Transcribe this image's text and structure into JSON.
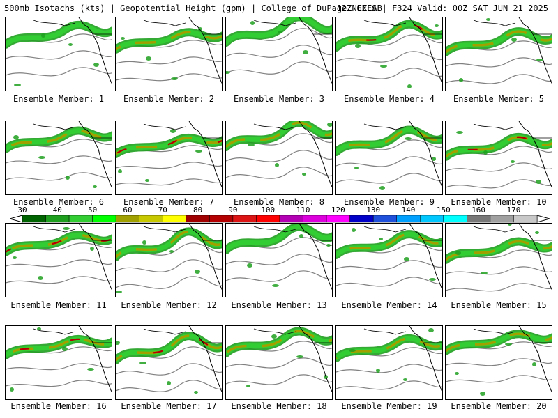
{
  "header": {
    "left": "500mb Isotachs (kts) | Geopotential Height (gpm) | College of DuPage NEXLAB",
    "right": "12Z GEFS | F324 Valid: 00Z SAT JUN 21 2025"
  },
  "legend": {
    "ticks": [
      "30",
      "40",
      "50",
      "60",
      "70",
      "80",
      "90",
      "100",
      "110",
      "120",
      "130",
      "140",
      "150",
      "160",
      "170"
    ],
    "colors": [
      "#006400",
      "#1ea01e",
      "#32cd32",
      "#00ff00",
      "#a0a000",
      "#c8c800",
      "#ffff00",
      "#a00000",
      "#b40000",
      "#dc1414",
      "#ff0000",
      "#b400b4",
      "#dc00dc",
      "#ff00ff",
      "#0000c8",
      "#1e50dc",
      "#00a0ff",
      "#00c8ff",
      "#00ffff",
      "#787878",
      "#a0a0a0",
      "#c8c8c8"
    ]
  },
  "map_colors": {
    "land_outline": "#000000",
    "height_contour": "#808080",
    "jet_weak": "#1ea01e",
    "jet_light": "#32cd32",
    "jet_moderate": "#a0a000",
    "jet_strong": "#c8c800",
    "jet_max": "#b40000"
  },
  "panels": [
    {
      "label": "Ensemble Member: 1",
      "jet_strength": 1
    },
    {
      "label": "Ensemble Member: 2",
      "jet_strength": 2
    },
    {
      "label": "Ensemble Member: 3",
      "jet_strength": 1
    },
    {
      "label": "Ensemble Member: 4",
      "jet_strength": 3
    },
    {
      "label": "Ensemble Member: 5",
      "jet_strength": 2
    },
    {
      "label": "Ensemble Member: 6",
      "jet_strength": 2
    },
    {
      "label": "Ensemble Member: 7",
      "jet_strength": 3
    },
    {
      "label": "Ensemble Member: 8",
      "jet_strength": 2
    },
    {
      "label": "Ensemble Member: 9",
      "jet_strength": 2
    },
    {
      "label": "Ensemble Member: 10",
      "jet_strength": 3
    },
    {
      "label": "Ensemble Member: 11",
      "jet_strength": 3
    },
    {
      "label": "Ensemble Member: 12",
      "jet_strength": 2
    },
    {
      "label": "Ensemble Member: 13",
      "jet_strength": 1
    },
    {
      "label": "Ensemble Member: 14",
      "jet_strength": 2
    },
    {
      "label": "Ensemble Member: 15",
      "jet_strength": 2
    },
    {
      "label": "Ensemble Member: 16",
      "jet_strength": 3
    },
    {
      "label": "Ensemble Member: 17",
      "jet_strength": 3
    },
    {
      "label": "Ensemble Member: 18",
      "jet_strength": 2
    },
    {
      "label": "Ensemble Member: 19",
      "jet_strength": 2
    },
    {
      "label": "Ensemble Member: 20",
      "jet_strength": 2
    }
  ]
}
